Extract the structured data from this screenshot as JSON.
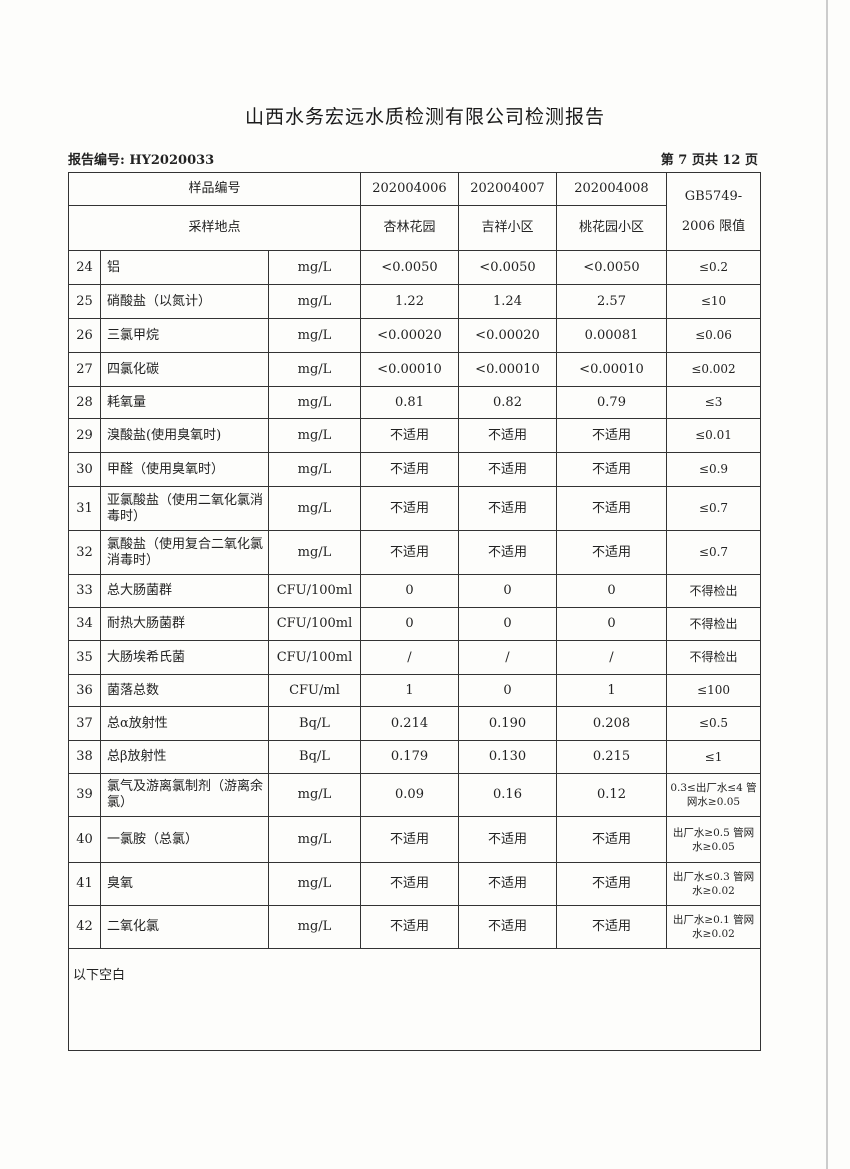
{
  "title": "山西水务宏远水质检测有限公司检测报告",
  "report_no": "报告编号: HY2020033",
  "page_info": "第 7 页共 12 页",
  "header": {
    "sample_no_label": "样品编号",
    "location_label": "采样地点",
    "samples": [
      {
        "id": "202004006",
        "location": "杏林花园"
      },
      {
        "id": "202004007",
        "location": "吉祥小区"
      },
      {
        "id": "202004008",
        "location": "桃花园小区"
      }
    ],
    "limit_label_1": "GB5749-",
    "limit_label_2": "2006 限值"
  },
  "rows": [
    {
      "no": "24",
      "name": "铝",
      "unit": "mg/L",
      "v": [
        "<0.0050",
        "<0.0050",
        "<0.0050"
      ],
      "limit": "≤0.2"
    },
    {
      "no": "25",
      "name": "硝酸盐（以氮计）",
      "unit": "mg/L",
      "v": [
        "1.22",
        "1.24",
        "2.57"
      ],
      "limit": "≤10"
    },
    {
      "no": "26",
      "name": "三氯甲烷",
      "unit": "mg/L",
      "v": [
        "<0.00020",
        "<0.00020",
        "0.00081"
      ],
      "limit": "≤0.06"
    },
    {
      "no": "27",
      "name": "四氯化碳",
      "unit": "mg/L",
      "v": [
        "<0.00010",
        "<0.00010",
        "<0.00010"
      ],
      "limit": "≤0.002"
    },
    {
      "no": "28",
      "name": "耗氧量",
      "unit": "mg/L",
      "v": [
        "0.81",
        "0.82",
        "0.79"
      ],
      "limit": "≤3"
    },
    {
      "no": "29",
      "name": "溴酸盐(使用臭氧时)",
      "unit": "mg/L",
      "v": [
        "不适用",
        "不适用",
        "不适用"
      ],
      "limit": "≤0.01"
    },
    {
      "no": "30",
      "name": "甲醛（使用臭氧时）",
      "unit": "mg/L",
      "v": [
        "不适用",
        "不适用",
        "不适用"
      ],
      "limit": "≤0.9"
    },
    {
      "no": "31",
      "name": "亚氯酸盐（使用二氧化氯消毒时）",
      "unit": "mg/L",
      "v": [
        "不适用",
        "不适用",
        "不适用"
      ],
      "limit": "≤0.7"
    },
    {
      "no": "32",
      "name": "氯酸盐（使用复合二氧化氯消毒时）",
      "unit": "mg/L",
      "v": [
        "不适用",
        "不适用",
        "不适用"
      ],
      "limit": "≤0.7"
    },
    {
      "no": "33",
      "name": "总大肠菌群",
      "unit": "CFU/100ml",
      "v": [
        "0",
        "0",
        "0"
      ],
      "limit": "不得检出"
    },
    {
      "no": "34",
      "name": "耐热大肠菌群",
      "unit": "CFU/100ml",
      "v": [
        "0",
        "0",
        "0"
      ],
      "limit": "不得检出"
    },
    {
      "no": "35",
      "name": "大肠埃希氏菌",
      "unit": "CFU/100ml",
      "v": [
        "/",
        "/",
        "/"
      ],
      "limit": "不得检出"
    },
    {
      "no": "36",
      "name": "菌落总数",
      "unit": "CFU/ml",
      "v": [
        "1",
        "0",
        "1"
      ],
      "limit": "≤100"
    },
    {
      "no": "37",
      "name": "总α放射性",
      "unit": "Bq/L",
      "v": [
        "0.214",
        "0.190",
        "0.208"
      ],
      "limit": "≤0.5"
    },
    {
      "no": "38",
      "name": "总β放射性",
      "unit": "Bq/L",
      "v": [
        "0.179",
        "0.130",
        "0.215"
      ],
      "limit": "≤1"
    },
    {
      "no": "39",
      "name": "氯气及游离氯制剂（游离余氯）",
      "unit": "mg/L",
      "v": [
        "0.09",
        "0.16",
        "0.12"
      ],
      "limit": "0.3≤出厂水≤4 管网水≥0.05"
    },
    {
      "no": "40",
      "name": "一氯胺（总氯）",
      "unit": "mg/L",
      "v": [
        "不适用",
        "不适用",
        "不适用"
      ],
      "limit": "出厂水≥0.5 管网水≥0.05"
    },
    {
      "no": "41",
      "name": "臭氧",
      "unit": "mg/L",
      "v": [
        "不适用",
        "不适用",
        "不适用"
      ],
      "limit": "出厂水≤0.3 管网水≥0.02"
    },
    {
      "no": "42",
      "name": "二氧化氯",
      "unit": "mg/L",
      "v": [
        "不适用",
        "不适用",
        "不适用"
      ],
      "limit": "出厂水≥0.1 管网水≥0.02"
    }
  ],
  "footer_note": "以下空白"
}
